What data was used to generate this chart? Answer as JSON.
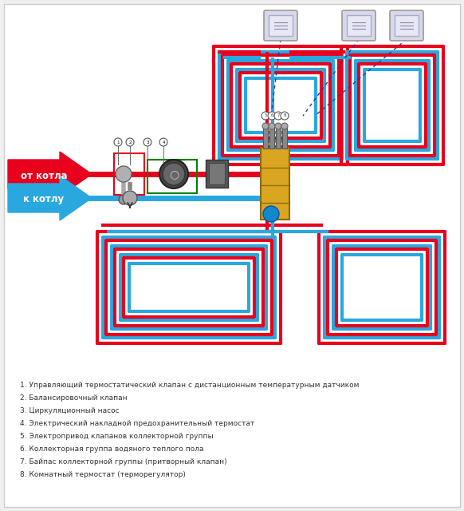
{
  "bg_color": "#ffffff",
  "outer_bg": "#f0f0f0",
  "red": "#e8001c",
  "blue": "#29a8e0",
  "legend_items": [
    "1. Управляющий термостатический клапан с дистанционным температурным датчиком",
    "2. Балансировочный клапан",
    "3. Циркуляционный насос",
    "4. Электрический накладной предохранительный термостат",
    "5. Электропривод клапанов коллекторной группы",
    "6. Коллекторная группа водяного теплого пола",
    "7. Байпас коллекторной группы (притворный клапан)",
    "8. Комнатный термостат (терморегулятор)"
  ],
  "label_from_boiler": "от котла",
  "label_to_boiler": "к котлу"
}
